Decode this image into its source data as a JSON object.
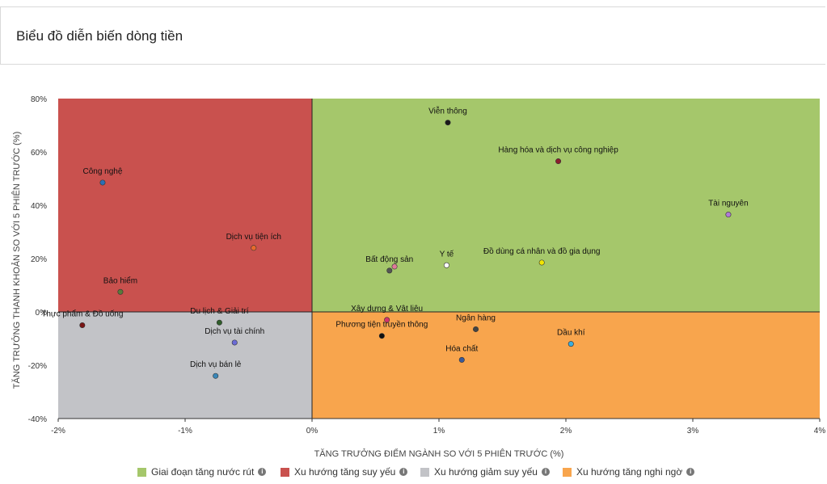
{
  "page": {
    "title": "Biểu đồ diễn biến dòng tiền"
  },
  "chart_data": {
    "type": "scatter",
    "title": "",
    "xlabel": "TĂNG TRƯỞNG ĐIỂM NGÀNH SO VỚI 5 PHIÊN TRƯỚC (%)",
    "ylabel": "TĂNG TRƯỞNG THANH KHOẢN SO VỚI 5 PHIÊN TRƯỚC (%)",
    "xlim": [
      -2,
      4
    ],
    "ylim": [
      -40,
      80
    ],
    "x_ticks": [
      -2,
      -1,
      0,
      1,
      2,
      3,
      4
    ],
    "x_tick_labels": [
      "-2%",
      "-1%",
      "0%",
      "1%",
      "2%",
      "3%",
      "4%"
    ],
    "y_ticks": [
      -40,
      -20,
      0,
      20,
      40,
      60,
      80
    ],
    "y_tick_labels": [
      "-40%",
      "-20%",
      "0%",
      "20%",
      "40%",
      "60%",
      "80%"
    ],
    "quadrants": [
      {
        "name": "Giai đoạn tăng nước rút",
        "color": "#a5c76b",
        "x": [
          0,
          4
        ],
        "y": [
          0,
          80
        ]
      },
      {
        "name": "Xu hướng tăng suy yếu",
        "color": "#c9514e",
        "x": [
          -2,
          0
        ],
        "y": [
          0,
          80
        ]
      },
      {
        "name": "Xu hướng giảm suy yếu",
        "color": "#c2c3c7",
        "x": [
          -2,
          0
        ],
        "y": [
          -40,
          0
        ]
      },
      {
        "name": "Xu hướng tăng nghi ngờ",
        "color": "#f8a54d",
        "x": [
          0,
          4
        ],
        "y": [
          -40,
          0
        ]
      }
    ],
    "points": [
      {
        "label": "Viễn thông",
        "x": 1.07,
        "y": 71,
        "color": "#1a1a1a"
      },
      {
        "label": "Hàng hóa và dịch vụ công nghiệp",
        "x": 1.94,
        "y": 56.5,
        "color": "#8b1d2c"
      },
      {
        "label": "Tài nguyên",
        "x": 3.28,
        "y": 36.5,
        "color": "#b07ad6"
      },
      {
        "label": "Công nghệ",
        "x": -1.65,
        "y": 48.5,
        "color": "#2a6fb5"
      },
      {
        "label": "Dịch vụ tiện ích",
        "x": -0.46,
        "y": 24,
        "color": "#e86a2c"
      },
      {
        "label": "Bất động sản",
        "x": 0.61,
        "y": 15.5,
        "color": "#555555"
      },
      {
        "label": "",
        "x": 0.65,
        "y": 17,
        "color": "#e07a9a"
      },
      {
        "label": "Y tế",
        "x": 1.06,
        "y": 17.5,
        "color": "#ffffff"
      },
      {
        "label": "Đồ dùng cá nhân và đồ gia dụng",
        "x": 1.81,
        "y": 18.5,
        "color": "#f2e600"
      },
      {
        "label": "Bảo hiểm",
        "x": -1.51,
        "y": 7.5,
        "color": "#5a7a3a"
      },
      {
        "label": "Thực phẩm & Đồ uống",
        "x": -1.81,
        "y": -5,
        "color": "#7a1515"
      },
      {
        "label": "Du lịch & Giải trí",
        "x": -0.73,
        "y": -4,
        "color": "#2f5d2a"
      },
      {
        "label": "Dịch vụ tài chính",
        "x": -0.61,
        "y": -11.5,
        "color": "#6b6bd6"
      },
      {
        "label": "Dịch vụ bán lẻ",
        "x": -0.76,
        "y": -24,
        "color": "#3a87b8"
      },
      {
        "label": "Xây dựng & Vật liệu",
        "x": 0.59,
        "y": -3,
        "color": "#d6336c"
      },
      {
        "label": "Phương tiện truyền thông",
        "x": 0.55,
        "y": -9,
        "color": "#111111"
      },
      {
        "label": "Ngân hàng",
        "x": 1.29,
        "y": -6.5,
        "color": "#444444"
      },
      {
        "label": "Hóa chất",
        "x": 1.18,
        "y": -18,
        "color": "#3a5a9a"
      },
      {
        "label": "Dầu khí",
        "x": 2.04,
        "y": -12,
        "color": "#3aaee0"
      }
    ],
    "legend": [
      {
        "label": "Giai đoạn tăng nước rút",
        "color": "#a5c76b",
        "icon": "info-icon"
      },
      {
        "label": "Xu hướng tăng suy yếu",
        "color": "#c9514e",
        "icon": "info-icon"
      },
      {
        "label": "Xu hướng giảm suy yếu",
        "color": "#c2c3c7",
        "icon": "info-icon"
      },
      {
        "label": "Xu hướng tăng nghi ngờ",
        "color": "#f8a54d",
        "icon": "info-icon"
      }
    ],
    "legend_position": "bottom",
    "grid": false
  }
}
